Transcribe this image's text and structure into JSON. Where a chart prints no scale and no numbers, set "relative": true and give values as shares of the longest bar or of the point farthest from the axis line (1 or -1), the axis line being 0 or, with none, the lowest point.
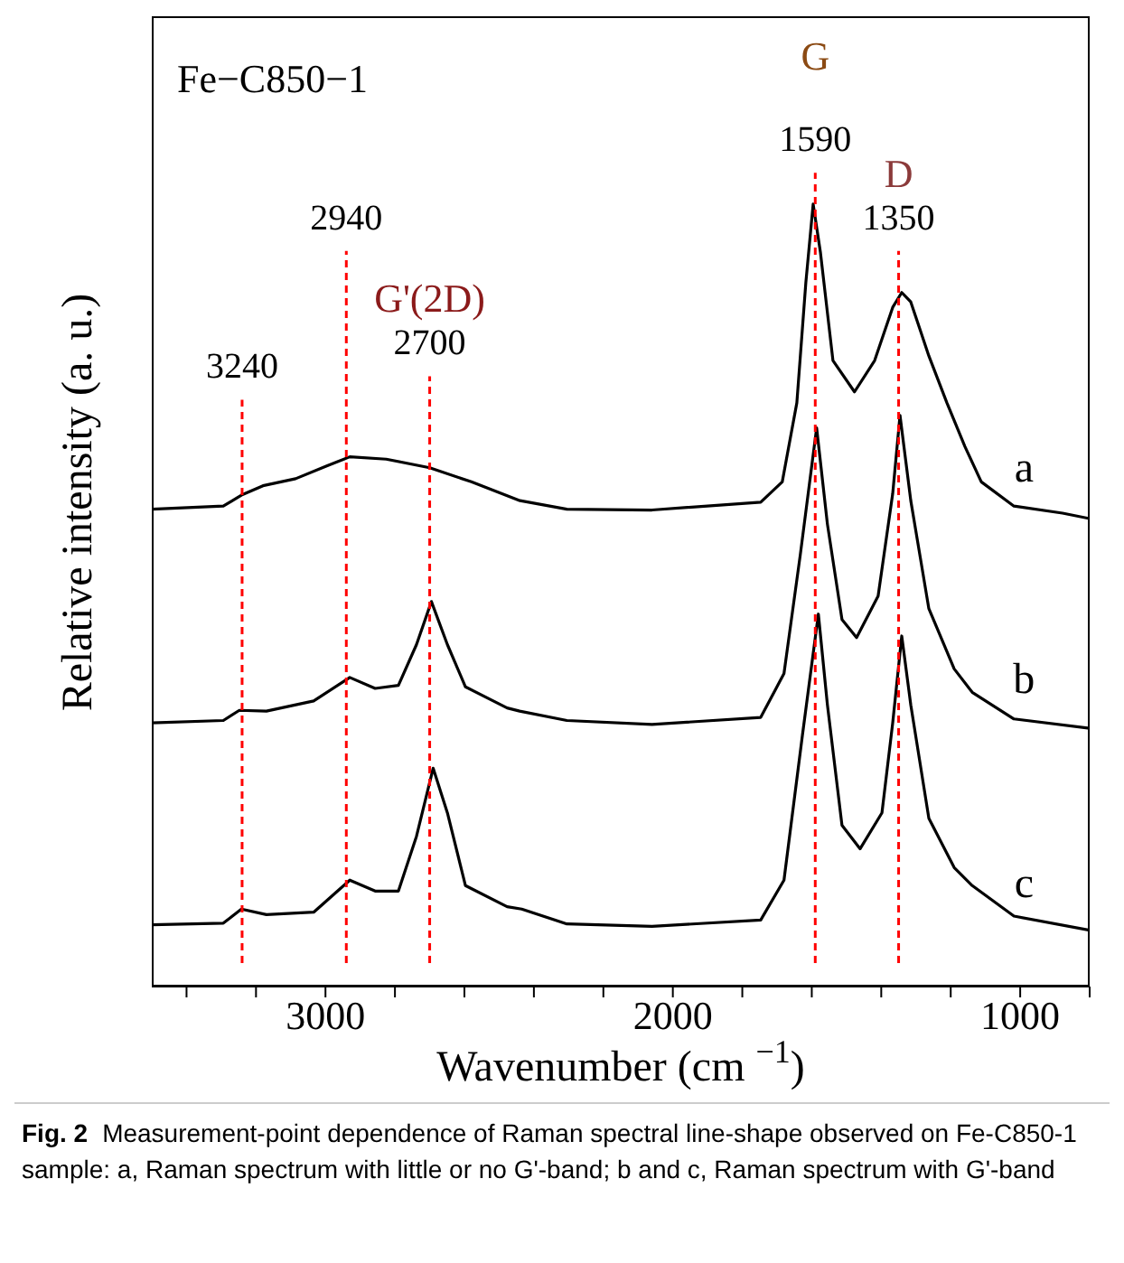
{
  "chart_data": {
    "type": "line",
    "title": "Fe−C850−1",
    "xlabel": "Wavenumber (cm $^{−1}$)",
    "ylabel": "Relative intensity (a. u.)",
    "relative": true,
    "marker": "none",
    "xlim": [
      3500,
      800
    ],
    "xticks": [
      {
        "value": 3400,
        "label": null
      },
      {
        "value": 3200,
        "label": null
      },
      3000,
      {
        "value": 2800,
        "label": null
      },
      {
        "value": 2600,
        "label": null
      },
      {
        "value": 2400,
        "label": null
      },
      {
        "value": 2200,
        "label": null
      },
      2000,
      {
        "value": 1800,
        "label": null
      },
      {
        "value": 1600,
        "label": null
      },
      {
        "value": 1400,
        "label": null
      },
      {
        "value": 1200,
        "label": null
      },
      1000,
      {
        "value": 800,
        "label": null
      }
    ],
    "series": [
      {
        "name": "a",
        "color": "#000000",
        "x": [
          3500,
          3294,
          3242,
          3180,
          3086,
          2998,
          2930,
          2825,
          2700,
          2580,
          2440,
          2305,
          2060,
          1747,
          1685,
          1643,
          1617,
          1596,
          1575,
          1539,
          1477,
          1419,
          1367,
          1341,
          1315,
          1263,
          1211,
          1159,
          1112,
          1018,
          878,
          800
        ],
        "values": [
          0.61,
          0.614,
          0.628,
          0.64,
          0.649,
          0.665,
          0.677,
          0.674,
          0.663,
          0.645,
          0.621,
          0.61,
          0.609,
          0.619,
          0.645,
          0.746,
          0.9,
          1.0,
          0.938,
          0.8,
          0.76,
          0.8,
          0.868,
          0.887,
          0.875,
          0.806,
          0.746,
          0.69,
          0.645,
          0.614,
          0.605,
          0.598
        ]
      },
      {
        "name": "b",
        "color": "#000000",
        "x": [
          3500,
          3294,
          3248,
          3170,
          3034,
          2930,
          2857,
          2790,
          2738,
          2695,
          2649,
          2597,
          2477,
          2441,
          2305,
          2060,
          1747,
          1680,
          1633,
          1586,
          1555,
          1513,
          1471,
          1409,
          1367,
          1346,
          1315,
          1263,
          1190,
          1138,
          1018,
          800
        ],
        "values": [
          0.337,
          0.34,
          0.353,
          0.352,
          0.365,
          0.395,
          0.381,
          0.385,
          0.437,
          0.492,
          0.437,
          0.383,
          0.356,
          0.352,
          0.34,
          0.335,
          0.344,
          0.4,
          0.552,
          0.714,
          0.591,
          0.469,
          0.446,
          0.499,
          0.63,
          0.73,
          0.621,
          0.483,
          0.406,
          0.376,
          0.342,
          0.33
        ]
      },
      {
        "name": "c",
        "color": "#000000",
        "x": [
          3500,
          3294,
          3242,
          3170,
          3034,
          2930,
          2857,
          2790,
          2738,
          2690,
          2649,
          2597,
          2477,
          2435,
          2305,
          2060,
          1747,
          1680,
          1627,
          1581,
          1555,
          1513,
          1461,
          1398,
          1367,
          1341,
          1315,
          1263,
          1190,
          1138,
          1018,
          800
        ],
        "values": [
          0.079,
          0.081,
          0.099,
          0.092,
          0.095,
          0.136,
          0.122,
          0.122,
          0.192,
          0.279,
          0.222,
          0.129,
          0.102,
          0.099,
          0.08,
          0.077,
          0.085,
          0.136,
          0.321,
          0.476,
          0.36,
          0.206,
          0.176,
          0.222,
          0.337,
          0.448,
          0.36,
          0.215,
          0.152,
          0.129,
          0.09,
          0.072
        ]
      }
    ],
    "ref_lines": [
      {
        "axis": "x",
        "value": 3240,
        "label": "3240",
        "color": "#ff0000",
        "line_style": "dashed"
      },
      {
        "axis": "x",
        "value": 2940,
        "label": "2940",
        "color": "#ff0000",
        "line_style": "dashed"
      },
      {
        "axis": "x",
        "value": 2700,
        "label": "2700",
        "color": "#ff0000",
        "line_style": "dashed"
      },
      {
        "axis": "x",
        "value": 1590,
        "label": "1590",
        "color": "#ff0000",
        "line_style": "dashed"
      },
      {
        "axis": "x",
        "value": 1350,
        "label": "1350",
        "color": "#ff0000",
        "line_style": "dashed"
      }
    ],
    "annotations": [
      "G'(2D)",
      "G",
      "D",
      "Fig. 2",
      "Measurement-point dependence of Raman spectral line-shape observed on Fe-C850-1 sample: a, Raman spectrum with little or no G'-band; b and c, Raman spectrum with G'-band"
    ]
  }
}
